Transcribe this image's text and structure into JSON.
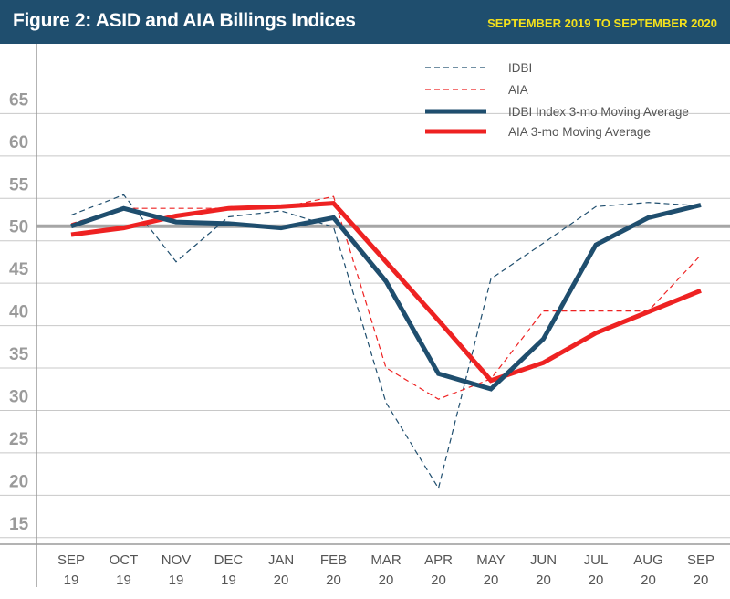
{
  "header": {
    "title": "Figure 2: ASID and AIA Billings Indices",
    "subtitle": "SEPTEMBER 2019 TO SEPTEMBER 2020"
  },
  "colors": {
    "header_bg": "#1f4e6e",
    "subtitle": "#f4e11c",
    "idbi": "#1f4e6e",
    "aia": "#ee2222",
    "reference_line": "#a6a6a6",
    "grid": "#c8c8c8"
  },
  "chart_data": {
    "type": "line",
    "categories": [
      [
        "SEP",
        "19"
      ],
      [
        "OCT",
        "19"
      ],
      [
        "NOV",
        "19"
      ],
      [
        "DEC",
        "19"
      ],
      [
        "JAN",
        "20"
      ],
      [
        "FEB",
        "20"
      ],
      [
        "MAR",
        "20"
      ],
      [
        "APR",
        "20"
      ],
      [
        "MAY",
        "20"
      ],
      [
        "JUN",
        "20"
      ],
      [
        "JUL",
        "20"
      ],
      [
        "AUG",
        "20"
      ],
      [
        "SEP",
        "20"
      ]
    ],
    "y_ticks": [
      15,
      20,
      25,
      30,
      35,
      40,
      45,
      50,
      55,
      60,
      65
    ],
    "ylim": [
      12.5,
      71.5
    ],
    "reference_line": 50,
    "grid": "horizontal",
    "legend_position": "top-right",
    "series": [
      {
        "name": "IDBI",
        "style": "dashed",
        "color": "#1f4e6e",
        "values": [
          51.3,
          53.7,
          45.8,
          51.1,
          51.8,
          49.9,
          29.2,
          19.1,
          43.8,
          48.0,
          52.3,
          52.8,
          52.4
        ]
      },
      {
        "name": "AIA",
        "style": "dashed",
        "color": "#ee2222",
        "values": [
          50.3,
          52.1,
          52.1,
          52.1,
          52.2,
          53.5,
          33.3,
          29.6,
          32.0,
          40.0,
          40.0,
          40.0,
          46.6
        ]
      },
      {
        "name": "IDBI Index 3-mo Moving Average",
        "style": "solid",
        "color": "#1f4e6e",
        "values": [
          50.0,
          52.1,
          50.5,
          50.3,
          49.8,
          51.0,
          43.5,
          32.6,
          30.8,
          36.7,
          47.8,
          51.0,
          52.5
        ]
      },
      {
        "name": "AIA 3-mo Moving Average",
        "style": "solid",
        "color": "#ee2222",
        "values": [
          49.0,
          49.8,
          51.2,
          52.1,
          52.3,
          52.7,
          45.8,
          38.9,
          31.8,
          33.9,
          37.4,
          39.9,
          42.4
        ]
      }
    ]
  }
}
